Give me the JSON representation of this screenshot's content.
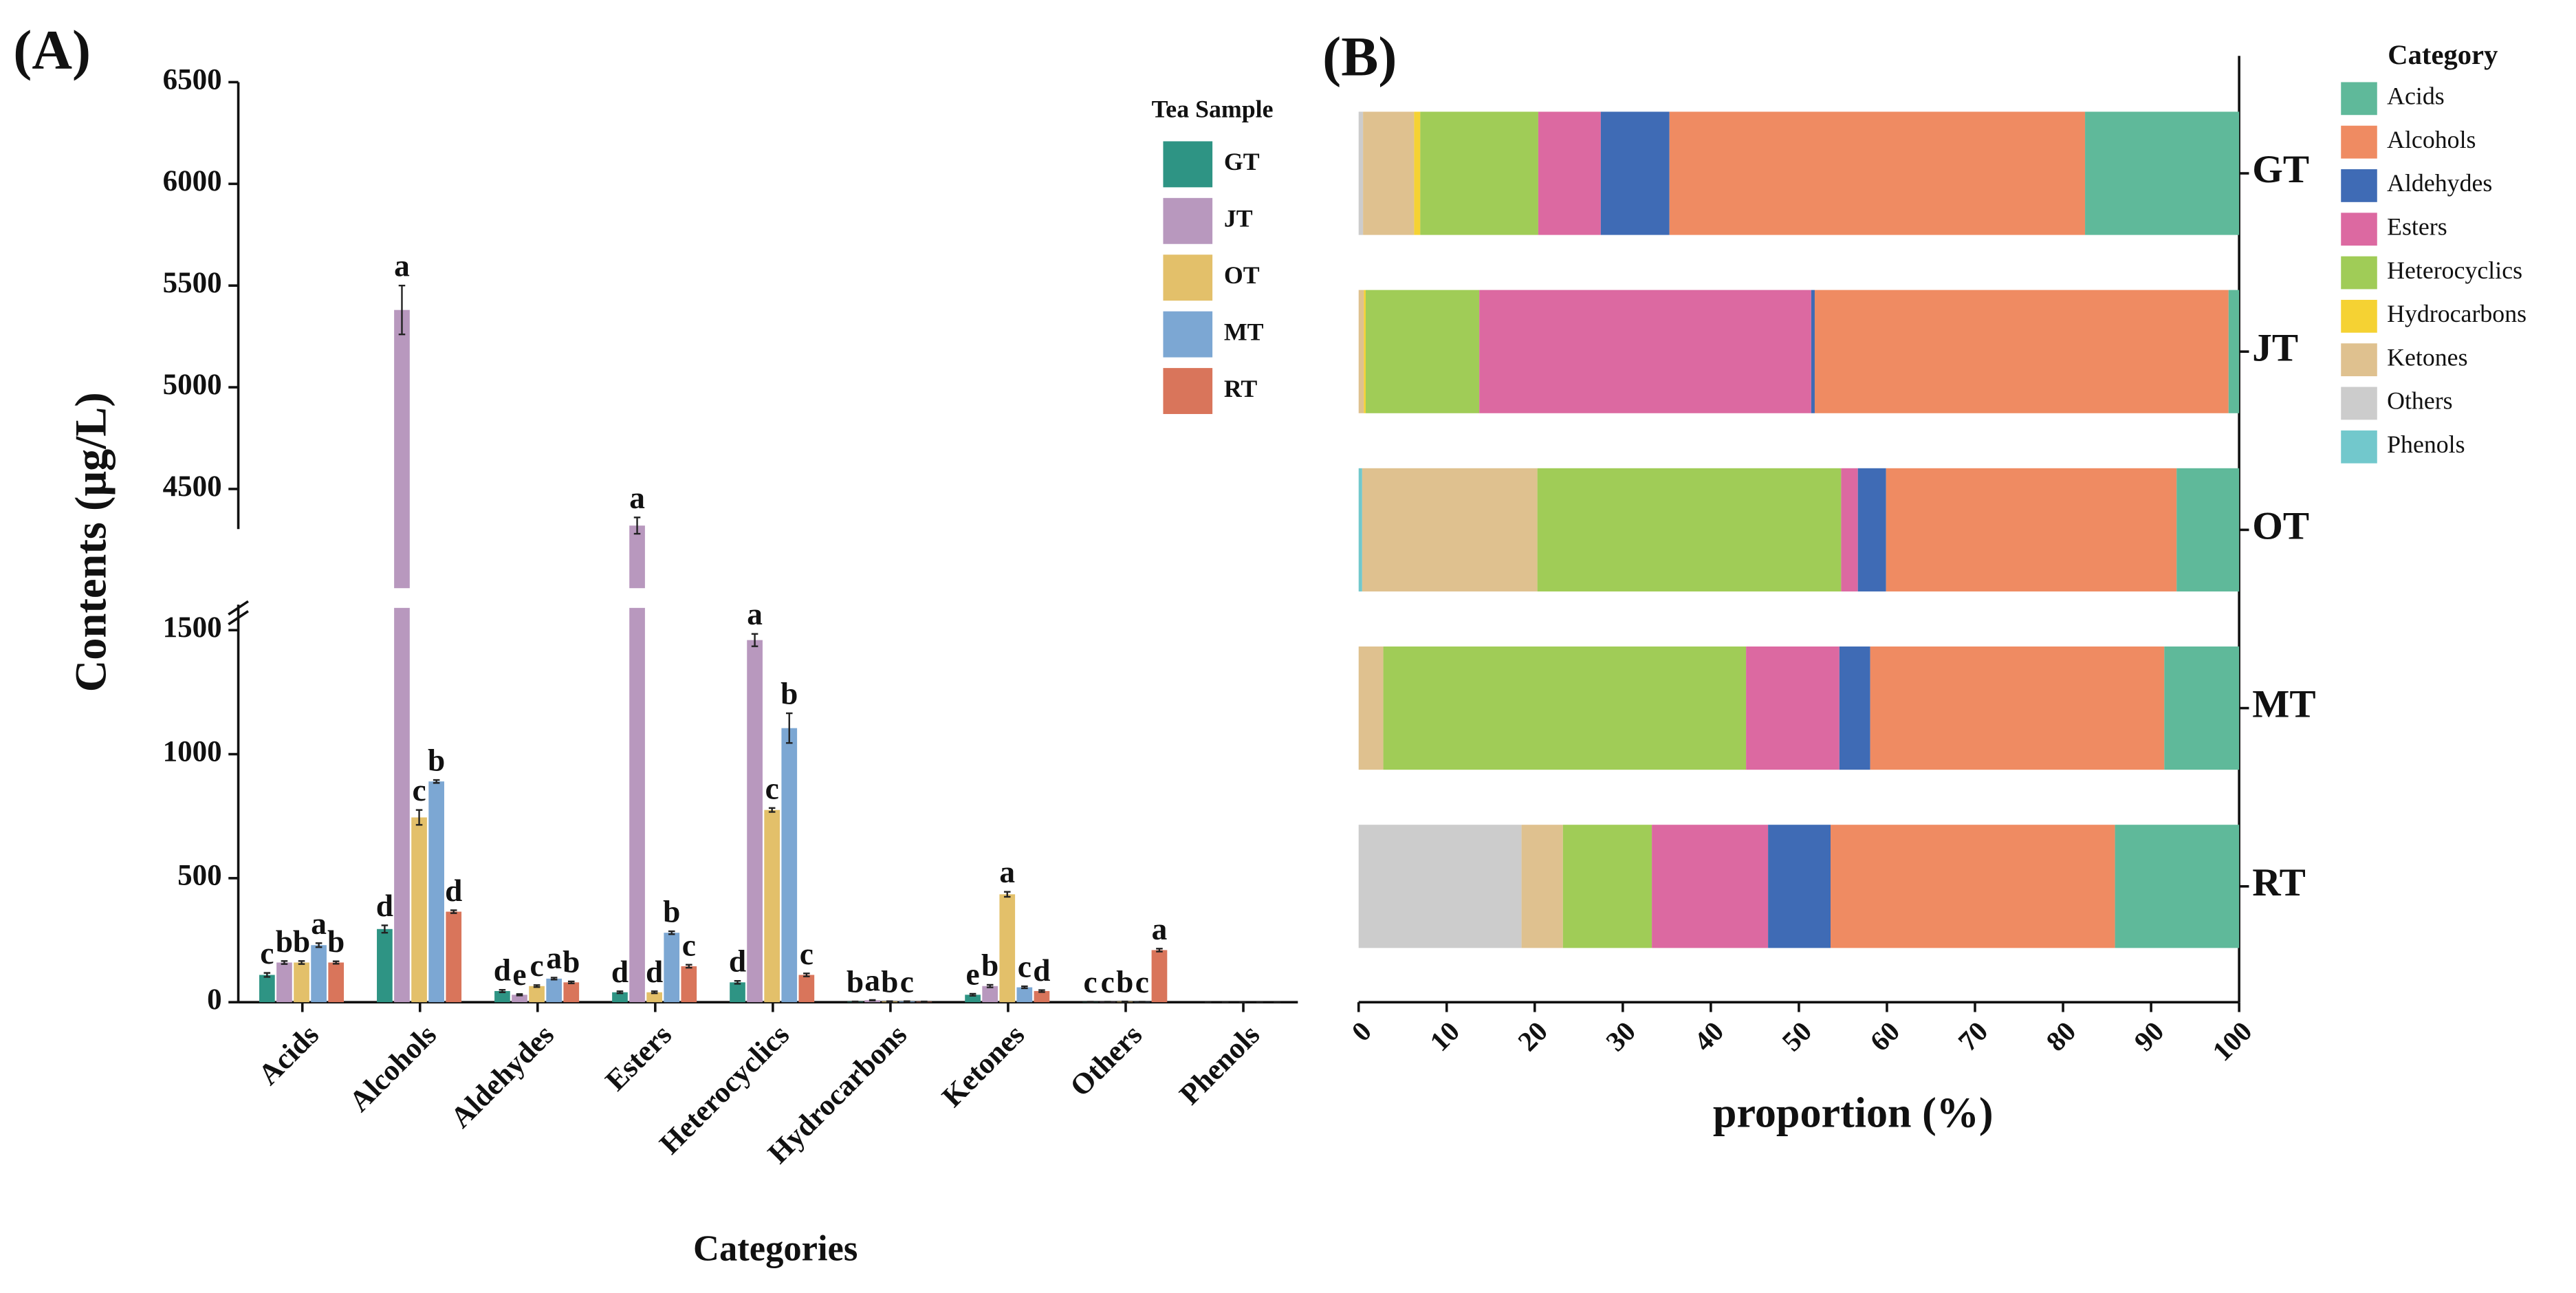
{
  "charts": [
    {
      "type": "bar",
      "panel": "(A)",
      "title": "Tea Sample",
      "x_label": "Categories",
      "y_label": "Contents (μg/L)",
      "categories": [
        "Acids",
        "Alcohols",
        "Aldehydes",
        "Esters",
        "Heterocyclics",
        "Hydrocarbons",
        "Ketones",
        "Others",
        "Phenols"
      ],
      "series": [
        {
          "name": "GT",
          "color": "#2e9484",
          "values": [
            110,
            295,
            45,
            40,
            80,
            2,
            30,
            1,
            0
          ],
          "errors": [
            8,
            15,
            5,
            4,
            6,
            1,
            4,
            1,
            0
          ],
          "letters": [
            "c",
            "d",
            "d",
            "d",
            "d",
            "b",
            "e",
            "c",
            null
          ]
        },
        {
          "name": "JT",
          "color": "#b898be",
          "values": [
            160,
            5380,
            30,
            4320,
            1460,
            8,
            65,
            1,
            0
          ],
          "errors": [
            6,
            120,
            3,
            40,
            25,
            1,
            5,
            1,
            0
          ],
          "letters": [
            "b",
            "a",
            "e",
            "a",
            "a",
            "a",
            "b",
            "c",
            null
          ]
        },
        {
          "name": "OT",
          "color": "#e3c06a",
          "values": [
            160,
            745,
            65,
            40,
            775,
            3,
            435,
            2,
            0
          ],
          "errors": [
            6,
            30,
            4,
            4,
            8,
            1,
            10,
            1,
            0
          ],
          "letters": [
            "b",
            "c",
            "c",
            "d",
            "c",
            "b",
            "a",
            "b",
            null
          ]
        },
        {
          "name": "MT",
          "color": "#7ca7d3",
          "values": [
            230,
            890,
            95,
            280,
            1105,
            3,
            60,
            1,
            0
          ],
          "errors": [
            8,
            6,
            4,
            6,
            60,
            1,
            4,
            1,
            0
          ],
          "letters": [
            "a",
            "b",
            "a",
            "b",
            "b",
            "c",
            "c",
            "c",
            null
          ]
        },
        {
          "name": "RT",
          "color": "#d9755b",
          "values": [
            160,
            365,
            80,
            145,
            110,
            2,
            45,
            210,
            0
          ],
          "errors": [
            5,
            6,
            4,
            6,
            6,
            1,
            4,
            6,
            0
          ],
          "letters": [
            "b",
            "d",
            "b",
            "c",
            "c",
            null,
            "d",
            "a",
            null
          ]
        }
      ],
      "ylim": [
        0,
        6500
      ],
      "axis_break": [
        1550,
        4400
      ],
      "yticks": [
        0,
        500,
        1000,
        1500,
        4500,
        5000,
        5500,
        6000,
        6500
      ]
    },
    {
      "type": "stacked-barh",
      "panel": "(B)",
      "title": "Category",
      "x_label": "proportion (%)",
      "categories": [
        "GT",
        "JT",
        "OT",
        "MT",
        "RT"
      ],
      "series": [
        {
          "name": "Acids",
          "color": "#5fb99a",
          "values": [
            17.5,
            1.2,
            7.1,
            8.5,
            14.1
          ]
        },
        {
          "name": "Alcohols",
          "color": "#ef8b62",
          "values": [
            47.2,
            47.0,
            33.0,
            33.4,
            32.3
          ]
        },
        {
          "name": "Aldehydes",
          "color": "#3f6bb5",
          "values": [
            7.8,
            0.4,
            3.2,
            3.5,
            7.1
          ]
        },
        {
          "name": "Esters",
          "color": "#dc69a1",
          "values": [
            7.1,
            37.7,
            1.9,
            10.6,
            13.2
          ]
        },
        {
          "name": "Heterocyclics",
          "color": "#a0cc57",
          "values": [
            13.4,
            12.9,
            34.5,
            41.2,
            10.1
          ]
        },
        {
          "name": "Hydrocarbons",
          "color": "#f5d233",
          "values": [
            0.7,
            0.2,
            0,
            0,
            0
          ]
        },
        {
          "name": "Ketones",
          "color": "#dfc18f",
          "values": [
            5.8,
            0.6,
            19.9,
            2.8,
            4.7
          ]
        },
        {
          "name": "Others",
          "color": "#cccccc",
          "values": [
            0.5,
            0,
            0,
            0,
            18.5
          ]
        },
        {
          "name": "Phenols",
          "color": "#72c8cc",
          "values": [
            0,
            0,
            0.4,
            0,
            0
          ]
        }
      ],
      "xlim": [
        0,
        100
      ],
      "xticks": [
        0,
        10,
        20,
        30,
        40,
        50,
        60,
        70,
        80,
        90,
        100
      ]
    }
  ]
}
